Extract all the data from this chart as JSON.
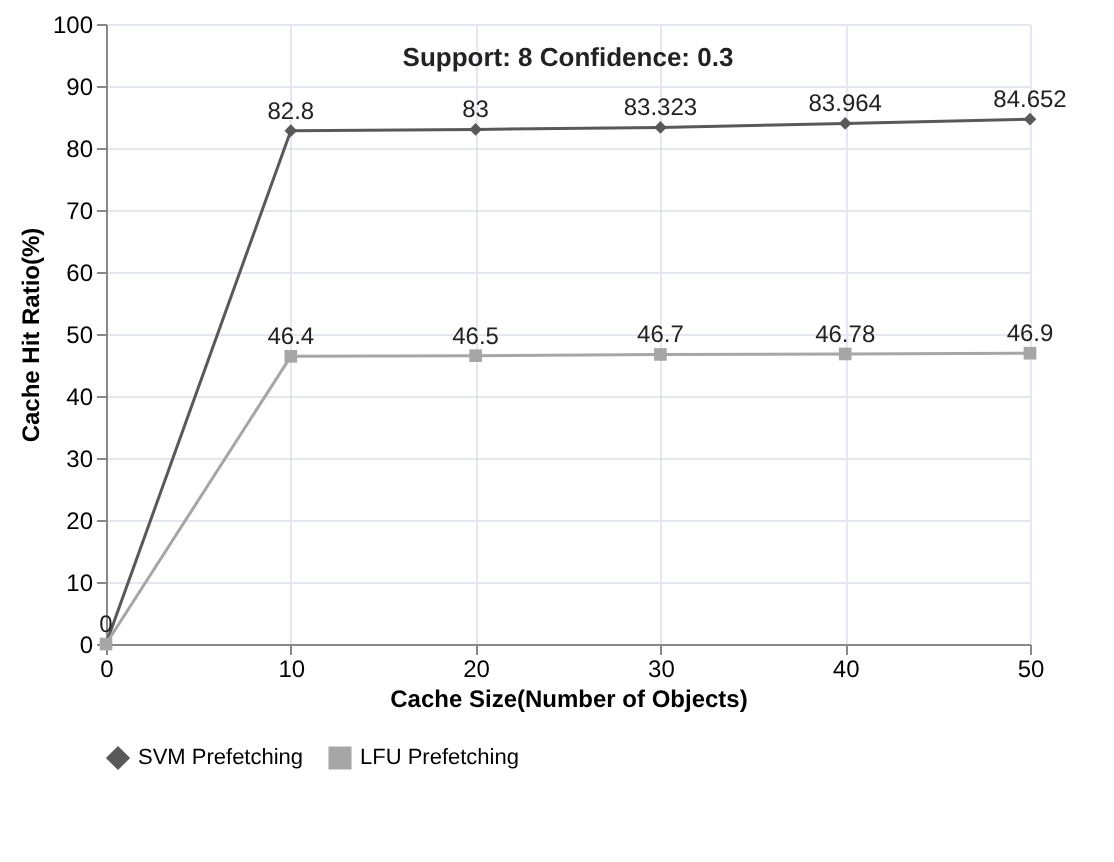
{
  "chart_data": {
    "type": "line",
    "title": "Support: 8 Confidence: 0.3",
    "xlabel": "Cache Size(Number of Objects)",
    "ylabel": "Cache Hit Ratio(%)",
    "x": [
      0,
      10,
      20,
      30,
      40,
      50
    ],
    "series": [
      {
        "name": "SVM Prefetching",
        "color": "#595959",
        "marker": "diamond",
        "values": [
          0,
          82.8,
          83,
          83.323,
          83.964,
          84.652
        ],
        "value_labels": [
          "0",
          "82.8",
          "83",
          "83.323",
          "83.964",
          "84.652"
        ]
      },
      {
        "name": "LFU Prefetching",
        "color": "#a6a6a6",
        "marker": "square",
        "values": [
          0,
          46.4,
          46.5,
          46.7,
          46.78,
          46.9
        ],
        "value_labels": [
          null,
          "46.4",
          "46.5",
          "46.7",
          "46.78",
          "46.9"
        ]
      }
    ],
    "xlim": [
      0,
      50
    ],
    "xticks": [
      0,
      10,
      20,
      30,
      40,
      50
    ],
    "ylim": [
      0,
      100
    ],
    "yticks": [
      0,
      10,
      20,
      30,
      40,
      50,
      60,
      70,
      80,
      90,
      100
    ],
    "grid": true,
    "legend": "bottom",
    "line_style": "solid"
  }
}
